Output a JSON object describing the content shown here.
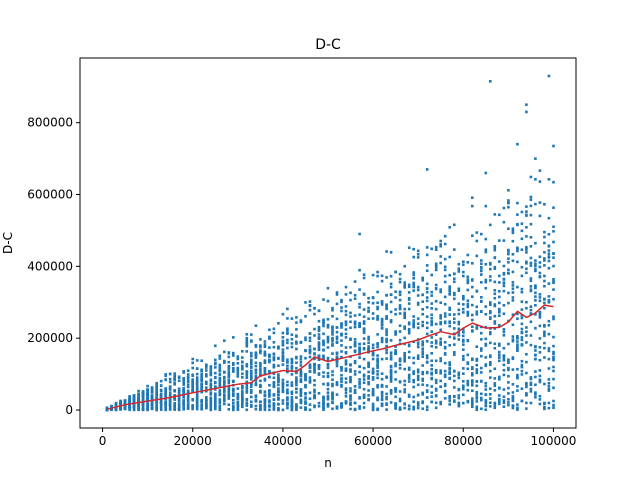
{
  "chart_data": {
    "type": "scatter",
    "title": "D-C",
    "xlabel": "n",
    "ylabel": "D-C",
    "xlim": [
      -5000,
      105000
    ],
    "ylim": [
      -50000,
      980000
    ],
    "grid": false,
    "legend": "none",
    "xticks": [
      0,
      20000,
      40000,
      60000,
      80000,
      100000
    ],
    "xtick_labels": [
      "0",
      "20000",
      "40000",
      "60000",
      "80000",
      "100000"
    ],
    "yticks": [
      0,
      200000,
      400000,
      600000,
      800000
    ],
    "ytick_labels": [
      "0",
      "200000",
      "400000",
      "600000",
      "800000"
    ],
    "scatter_style": {
      "color": "#1f77b4",
      "x_range": [
        1000,
        100000
      ],
      "x_step": 1000,
      "points_per_x": 30,
      "y_min": 0,
      "y_max_slope": 5.8,
      "outliers": [
        {
          "x": 86000,
          "y": 915000
        },
        {
          "x": 99000,
          "y": 930000
        },
        {
          "x": 94000,
          "y": 850000
        },
        {
          "x": 94000,
          "y": 830000
        },
        {
          "x": 92000,
          "y": 740000
        },
        {
          "x": 96000,
          "y": 700000
        },
        {
          "x": 100000,
          "y": 735000
        },
        {
          "x": 72000,
          "y": 670000
        },
        {
          "x": 85000,
          "y": 660000
        },
        {
          "x": 57000,
          "y": 490000
        }
      ]
    },
    "series": [
      {
        "kind": "line",
        "color": "#d62728",
        "x": [
          1000,
          5000,
          10000,
          15000,
          20000,
          25000,
          30000,
          33000,
          35000,
          40000,
          43000,
          45000,
          47000,
          50000,
          55000,
          60000,
          62000,
          65000,
          70000,
          72000,
          75000,
          78000,
          80000,
          82000,
          85000,
          88000,
          90000,
          92000,
          94000,
          96000,
          98000,
          100000
        ],
        "y": [
          2000,
          15000,
          25000,
          35000,
          48000,
          60000,
          72000,
          76000,
          95000,
          110000,
          107000,
          125000,
          148000,
          135000,
          150000,
          165000,
          170000,
          180000,
          195000,
          205000,
          218000,
          210000,
          228000,
          242000,
          228000,
          230000,
          245000,
          275000,
          258000,
          270000,
          292000,
          288000
        ]
      }
    ]
  }
}
